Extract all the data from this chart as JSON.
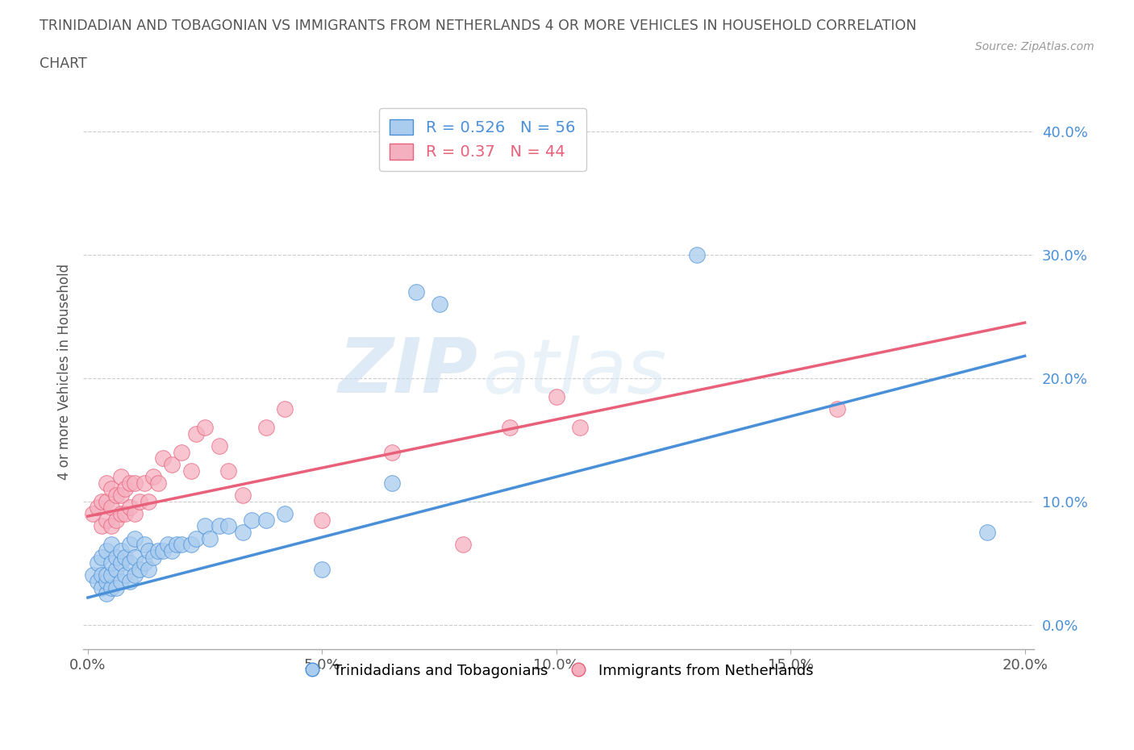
{
  "title_line1": "TRINIDADIAN AND TOBAGONIAN VS IMMIGRANTS FROM NETHERLANDS 4 OR MORE VEHICLES IN HOUSEHOLD CORRELATION",
  "title_line2": "CHART",
  "source_text": "Source: ZipAtlas.com",
  "ylabel": "4 or more Vehicles in Household",
  "xlim": [
    -0.001,
    0.202
  ],
  "ylim": [
    -0.02,
    0.43
  ],
  "xtick_labels": [
    "0.0%",
    "5.0%",
    "10.0%",
    "15.0%",
    "20.0%"
  ],
  "xtick_vals": [
    0.0,
    0.05,
    0.1,
    0.15,
    0.2
  ],
  "ytick_labels": [
    "0.0%",
    "10.0%",
    "20.0%",
    "30.0%",
    "40.0%"
  ],
  "ytick_vals": [
    0.0,
    0.1,
    0.2,
    0.3,
    0.4
  ],
  "blue_R": 0.526,
  "blue_N": 56,
  "pink_R": 0.37,
  "pink_N": 44,
  "blue_color": "#aaccee",
  "pink_color": "#f5b0c0",
  "blue_line_color": "#4a90d9",
  "pink_line_color": "#e8607a",
  "watermark_zip": "ZIP",
  "watermark_atlas": "atlas",
  "legend_label_blue": "Trinidadians and Tobagonians",
  "legend_label_pink": "Immigrants from Netherlands",
  "blue_line_x0": 0.0,
  "blue_line_y0": 0.022,
  "blue_line_x1": 0.2,
  "blue_line_y1": 0.218,
  "pink_line_x0": 0.0,
  "pink_line_y0": 0.088,
  "pink_line_x1": 0.2,
  "pink_line_y1": 0.245,
  "blue_x": [
    0.001,
    0.002,
    0.002,
    0.003,
    0.003,
    0.003,
    0.004,
    0.004,
    0.004,
    0.004,
    0.005,
    0.005,
    0.005,
    0.005,
    0.006,
    0.006,
    0.006,
    0.007,
    0.007,
    0.007,
    0.008,
    0.008,
    0.009,
    0.009,
    0.009,
    0.01,
    0.01,
    0.01,
    0.011,
    0.012,
    0.012,
    0.013,
    0.013,
    0.014,
    0.015,
    0.016,
    0.017,
    0.018,
    0.019,
    0.02,
    0.022,
    0.023,
    0.025,
    0.026,
    0.028,
    0.03,
    0.033,
    0.035,
    0.038,
    0.042,
    0.05,
    0.065,
    0.07,
    0.075,
    0.13,
    0.192
  ],
  "blue_y": [
    0.04,
    0.035,
    0.05,
    0.03,
    0.04,
    0.055,
    0.025,
    0.035,
    0.04,
    0.06,
    0.03,
    0.04,
    0.05,
    0.065,
    0.03,
    0.045,
    0.055,
    0.035,
    0.05,
    0.06,
    0.04,
    0.055,
    0.035,
    0.05,
    0.065,
    0.04,
    0.055,
    0.07,
    0.045,
    0.05,
    0.065,
    0.045,
    0.06,
    0.055,
    0.06,
    0.06,
    0.065,
    0.06,
    0.065,
    0.065,
    0.065,
    0.07,
    0.08,
    0.07,
    0.08,
    0.08,
    0.075,
    0.085,
    0.085,
    0.09,
    0.045,
    0.115,
    0.27,
    0.26,
    0.3,
    0.075
  ],
  "pink_x": [
    0.001,
    0.002,
    0.003,
    0.003,
    0.004,
    0.004,
    0.004,
    0.005,
    0.005,
    0.005,
    0.006,
    0.006,
    0.007,
    0.007,
    0.007,
    0.008,
    0.008,
    0.009,
    0.009,
    0.01,
    0.01,
    0.011,
    0.012,
    0.013,
    0.014,
    0.015,
    0.016,
    0.018,
    0.02,
    0.022,
    0.023,
    0.025,
    0.028,
    0.03,
    0.033,
    0.038,
    0.042,
    0.05,
    0.065,
    0.08,
    0.09,
    0.1,
    0.105,
    0.16
  ],
  "pink_y": [
    0.09,
    0.095,
    0.08,
    0.1,
    0.085,
    0.1,
    0.115,
    0.08,
    0.095,
    0.11,
    0.085,
    0.105,
    0.09,
    0.105,
    0.12,
    0.09,
    0.11,
    0.095,
    0.115,
    0.09,
    0.115,
    0.1,
    0.115,
    0.1,
    0.12,
    0.115,
    0.135,
    0.13,
    0.14,
    0.125,
    0.155,
    0.16,
    0.145,
    0.125,
    0.105,
    0.16,
    0.175,
    0.085,
    0.14,
    0.065,
    0.16,
    0.185,
    0.16,
    0.175
  ]
}
